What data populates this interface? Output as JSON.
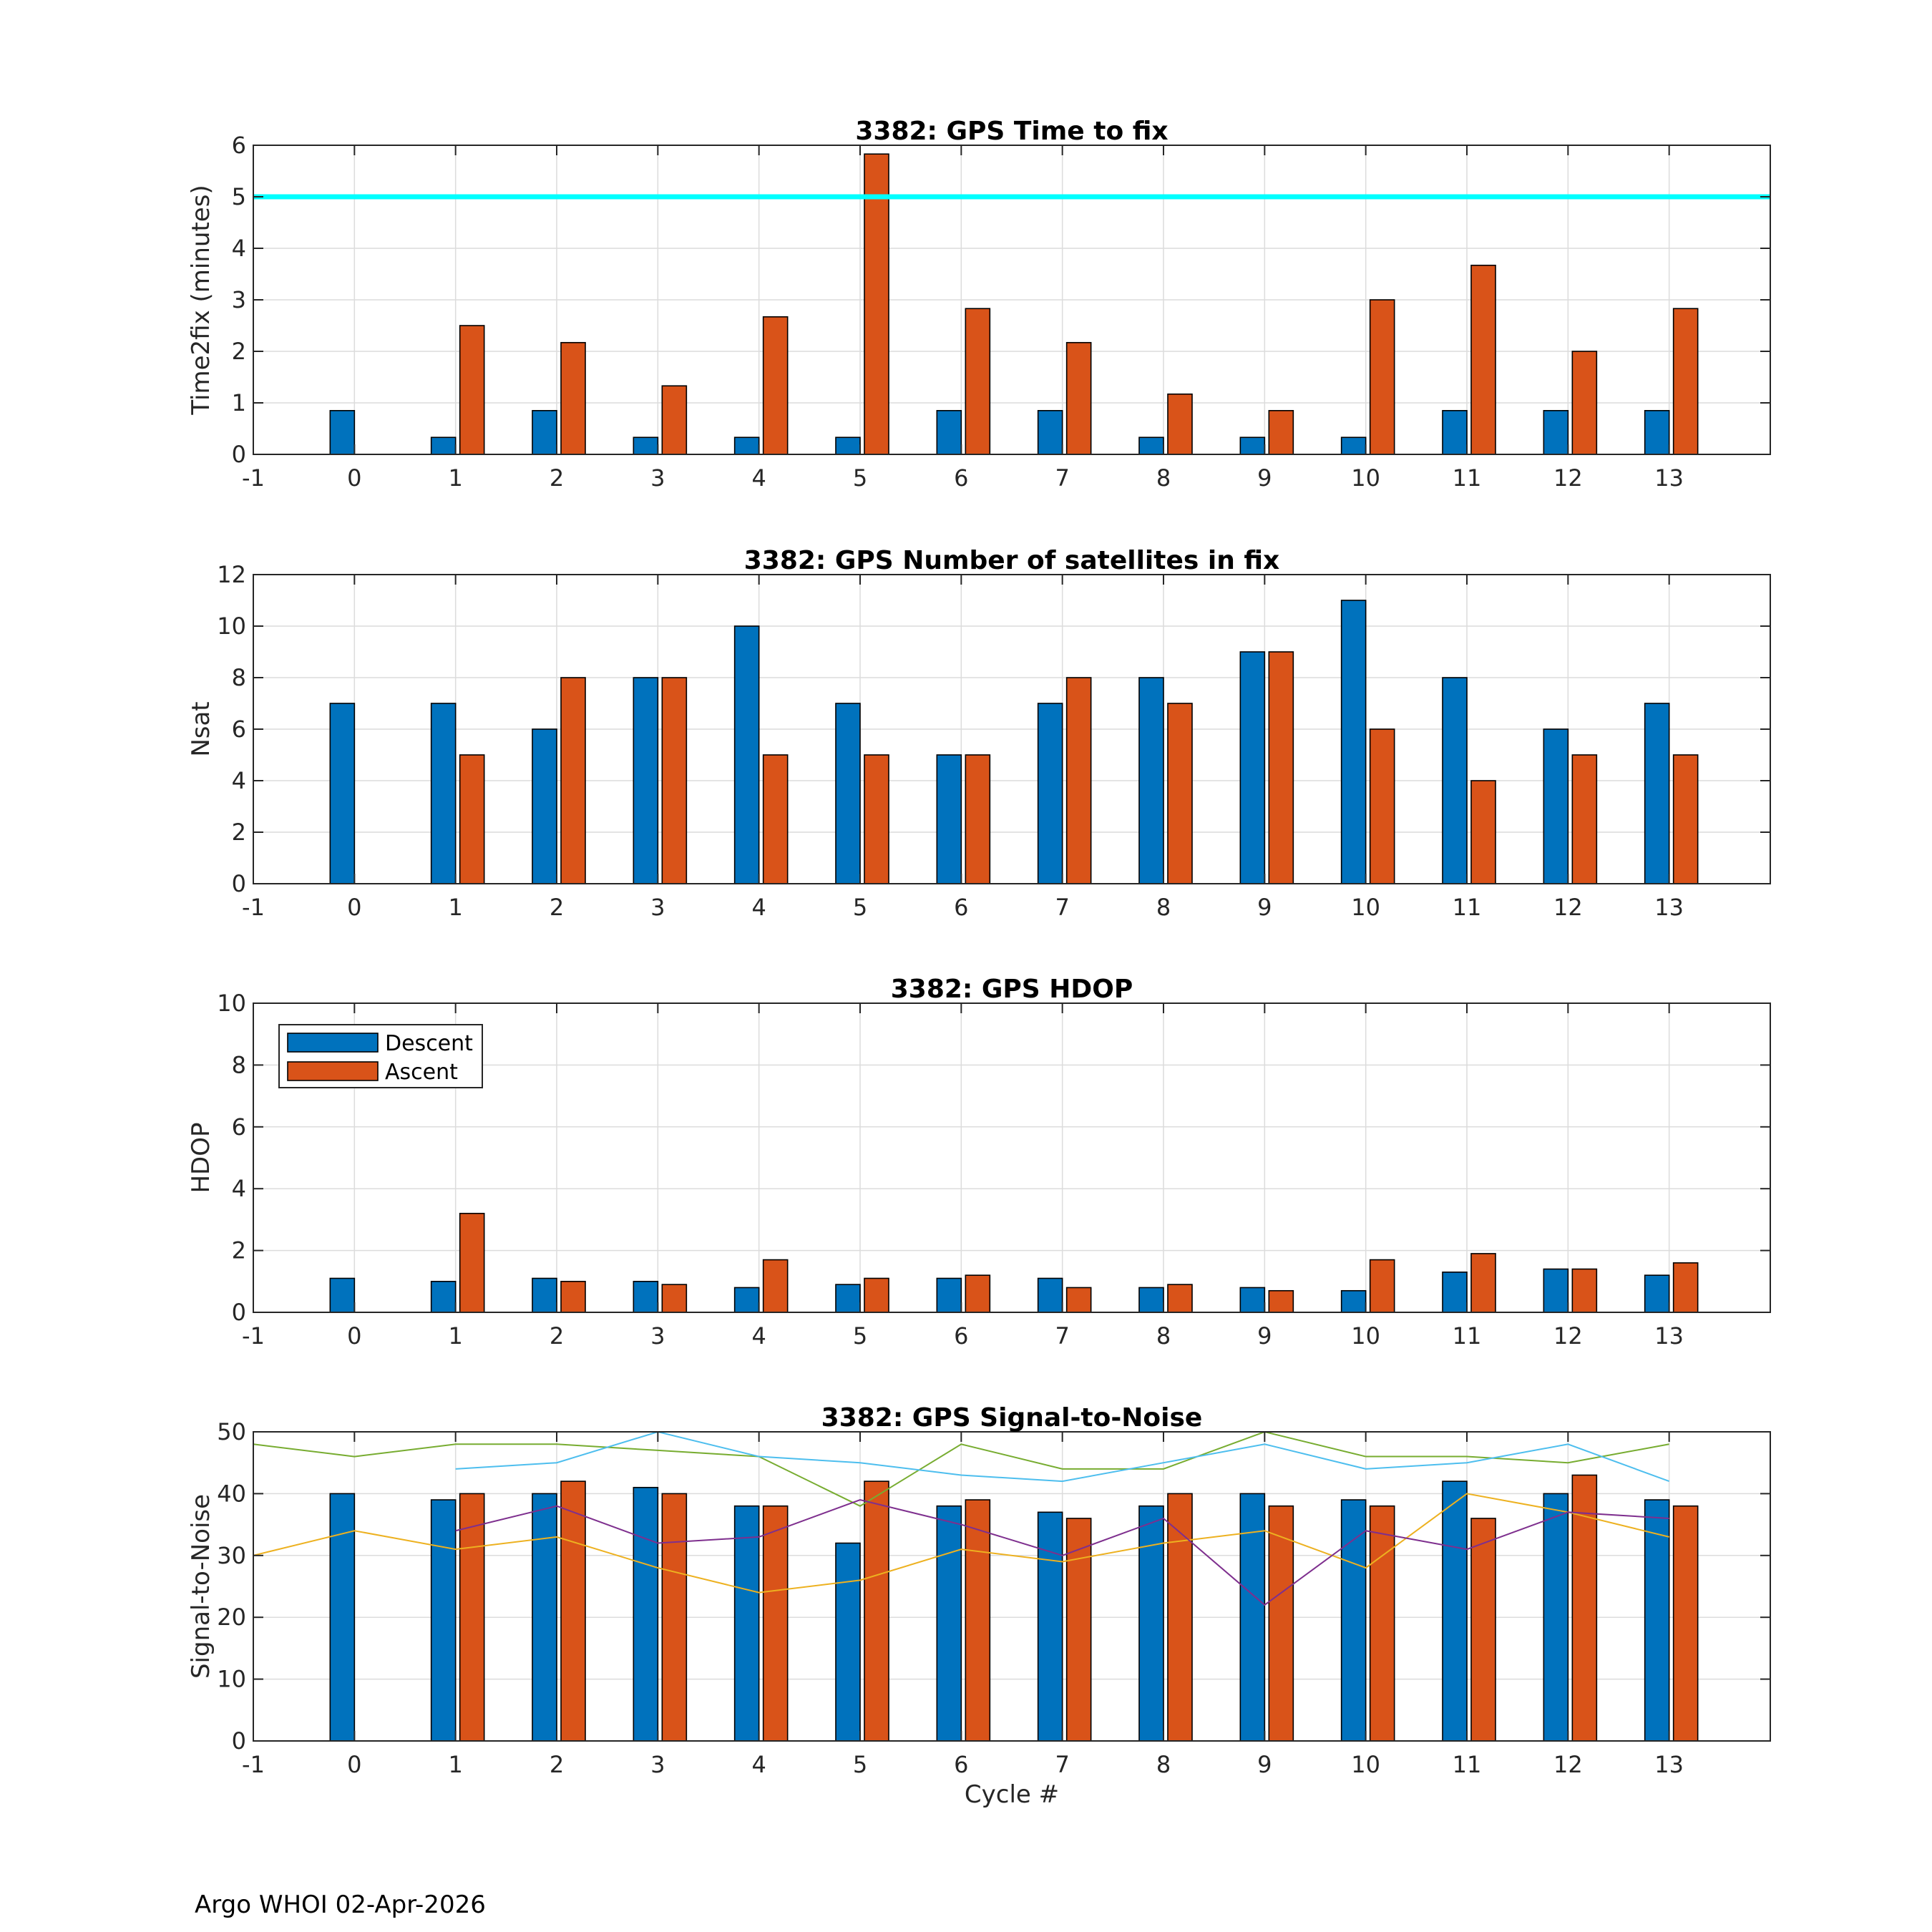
{
  "footer": "Argo WHOI 02-Apr-2026",
  "colors": {
    "descent": "#0072BD",
    "ascent": "#D95319",
    "threshold": "#00FFFF",
    "snr_lines": [
      "#77AC30",
      "#4DBEEE",
      "#EDB120",
      "#7E2F8E"
    ]
  },
  "legend": {
    "descent": "Descent",
    "ascent": "Ascent"
  },
  "chart_data": [
    {
      "type": "bar",
      "title": "3382: GPS Time to fix",
      "ylabel": "Time2fix (minutes)",
      "xlabel": "",
      "xlim": [
        -1,
        14
      ],
      "ylim": [
        0,
        6
      ],
      "xticks": [
        -1,
        0,
        1,
        2,
        3,
        4,
        5,
        6,
        7,
        8,
        9,
        10,
        11,
        12,
        13
      ],
      "yticks": [
        0,
        1,
        2,
        3,
        4,
        5,
        6
      ],
      "grid": true,
      "reference_line": 5,
      "categories": [
        0,
        1,
        2,
        3,
        4,
        5,
        6,
        7,
        8,
        9,
        10,
        11,
        12,
        13
      ],
      "series": [
        {
          "name": "Descent",
          "values": [
            0.85,
            0.33,
            0.85,
            0.33,
            0.33,
            0.33,
            0.85,
            0.85,
            0.33,
            0.33,
            0.33,
            0.85,
            0.85,
            0.85
          ]
        },
        {
          "name": "Ascent",
          "values": [
            null,
            2.5,
            2.17,
            1.33,
            2.67,
            5.83,
            2.83,
            2.17,
            1.17,
            0.85,
            3.0,
            3.67,
            2.0,
            2.83
          ]
        }
      ]
    },
    {
      "type": "bar",
      "title": "3382: GPS Number of satellites in fix",
      "ylabel": "Nsat",
      "xlabel": "",
      "xlim": [
        -1,
        14
      ],
      "ylim": [
        0,
        12
      ],
      "xticks": [
        -1,
        0,
        1,
        2,
        3,
        4,
        5,
        6,
        7,
        8,
        9,
        10,
        11,
        12,
        13
      ],
      "yticks": [
        0,
        2,
        4,
        6,
        8,
        10,
        12
      ],
      "grid": true,
      "categories": [
        0,
        1,
        2,
        3,
        4,
        5,
        6,
        7,
        8,
        9,
        10,
        11,
        12,
        13
      ],
      "series": [
        {
          "name": "Descent",
          "values": [
            7,
            7,
            6,
            8,
            10,
            7,
            5,
            7,
            8,
            9,
            11,
            8,
            6,
            7
          ]
        },
        {
          "name": "Ascent",
          "values": [
            null,
            5,
            8,
            8,
            5,
            5,
            5,
            8,
            7,
            9,
            6,
            4,
            5,
            5
          ]
        }
      ]
    },
    {
      "type": "bar",
      "title": "3382: GPS HDOP",
      "ylabel": "HDOP",
      "xlabel": "",
      "xlim": [
        -1,
        14
      ],
      "ylim": [
        0,
        10
      ],
      "xticks": [
        -1,
        0,
        1,
        2,
        3,
        4,
        5,
        6,
        7,
        8,
        9,
        10,
        11,
        12,
        13
      ],
      "yticks": [
        0,
        2,
        4,
        6,
        8,
        10
      ],
      "grid": true,
      "legend": "top-left",
      "categories": [
        0,
        1,
        2,
        3,
        4,
        5,
        6,
        7,
        8,
        9,
        10,
        11,
        12,
        13
      ],
      "series": [
        {
          "name": "Descent",
          "values": [
            1.1,
            1.0,
            1.1,
            1.0,
            0.8,
            0.9,
            1.1,
            1.1,
            0.8,
            0.8,
            0.7,
            1.3,
            1.4,
            1.2
          ]
        },
        {
          "name": "Ascent",
          "values": [
            null,
            3.2,
            1.0,
            0.9,
            1.7,
            1.1,
            1.2,
            0.8,
            0.9,
            0.7,
            1.7,
            1.9,
            1.4,
            1.6
          ]
        }
      ]
    },
    {
      "type": "bar",
      "title": "3382: GPS Signal-to-Noise",
      "ylabel": "Signal-to-Noise",
      "xlabel": "Cycle #",
      "xlim": [
        -1,
        14
      ],
      "ylim": [
        0,
        50
      ],
      "xticks": [
        -1,
        0,
        1,
        2,
        3,
        4,
        5,
        6,
        7,
        8,
        9,
        10,
        11,
        12,
        13
      ],
      "yticks": [
        0,
        10,
        20,
        30,
        40,
        50
      ],
      "grid": true,
      "categories": [
        0,
        1,
        2,
        3,
        4,
        5,
        6,
        7,
        8,
        9,
        10,
        11,
        12,
        13
      ],
      "series": [
        {
          "name": "Descent",
          "values": [
            40,
            39,
            40,
            41,
            38,
            32,
            38,
            37,
            38,
            40,
            39,
            42,
            40,
            39
          ]
        },
        {
          "name": "Ascent",
          "values": [
            null,
            40,
            42,
            40,
            38,
            42,
            39,
            36,
            40,
            38,
            38,
            36,
            43,
            38
          ]
        }
      ],
      "lines": [
        {
          "name": "green",
          "x": [
            -1,
            0,
            1,
            2,
            3,
            4,
            5,
            6,
            7,
            8,
            9,
            10,
            11,
            12,
            13
          ],
          "values": [
            48,
            46,
            48,
            48,
            47,
            46,
            38,
            48,
            44,
            44,
            50,
            46,
            46,
            45,
            48
          ]
        },
        {
          "name": "cyan",
          "x": [
            1,
            2,
            3,
            4,
            5,
            6,
            7,
            8,
            9,
            10,
            11,
            12,
            13
          ],
          "values": [
            44,
            45,
            50,
            46,
            45,
            43,
            42,
            45,
            48,
            44,
            45,
            48,
            42
          ]
        },
        {
          "name": "yellow",
          "x": [
            -1,
            0,
            1,
            2,
            3,
            4,
            5,
            6,
            7,
            8,
            9,
            10,
            11,
            12,
            13
          ],
          "values": [
            30,
            34,
            31,
            33,
            28,
            24,
            26,
            31,
            29,
            32,
            34,
            28,
            40,
            37,
            33
          ]
        },
        {
          "name": "purple",
          "x": [
            1,
            2,
            3,
            4,
            5,
            6,
            7,
            8,
            9,
            10,
            11,
            12,
            13
          ],
          "values": [
            34,
            38,
            32,
            33,
            39,
            35,
            30,
            36,
            22,
            34,
            31,
            37,
            36
          ]
        }
      ]
    }
  ]
}
